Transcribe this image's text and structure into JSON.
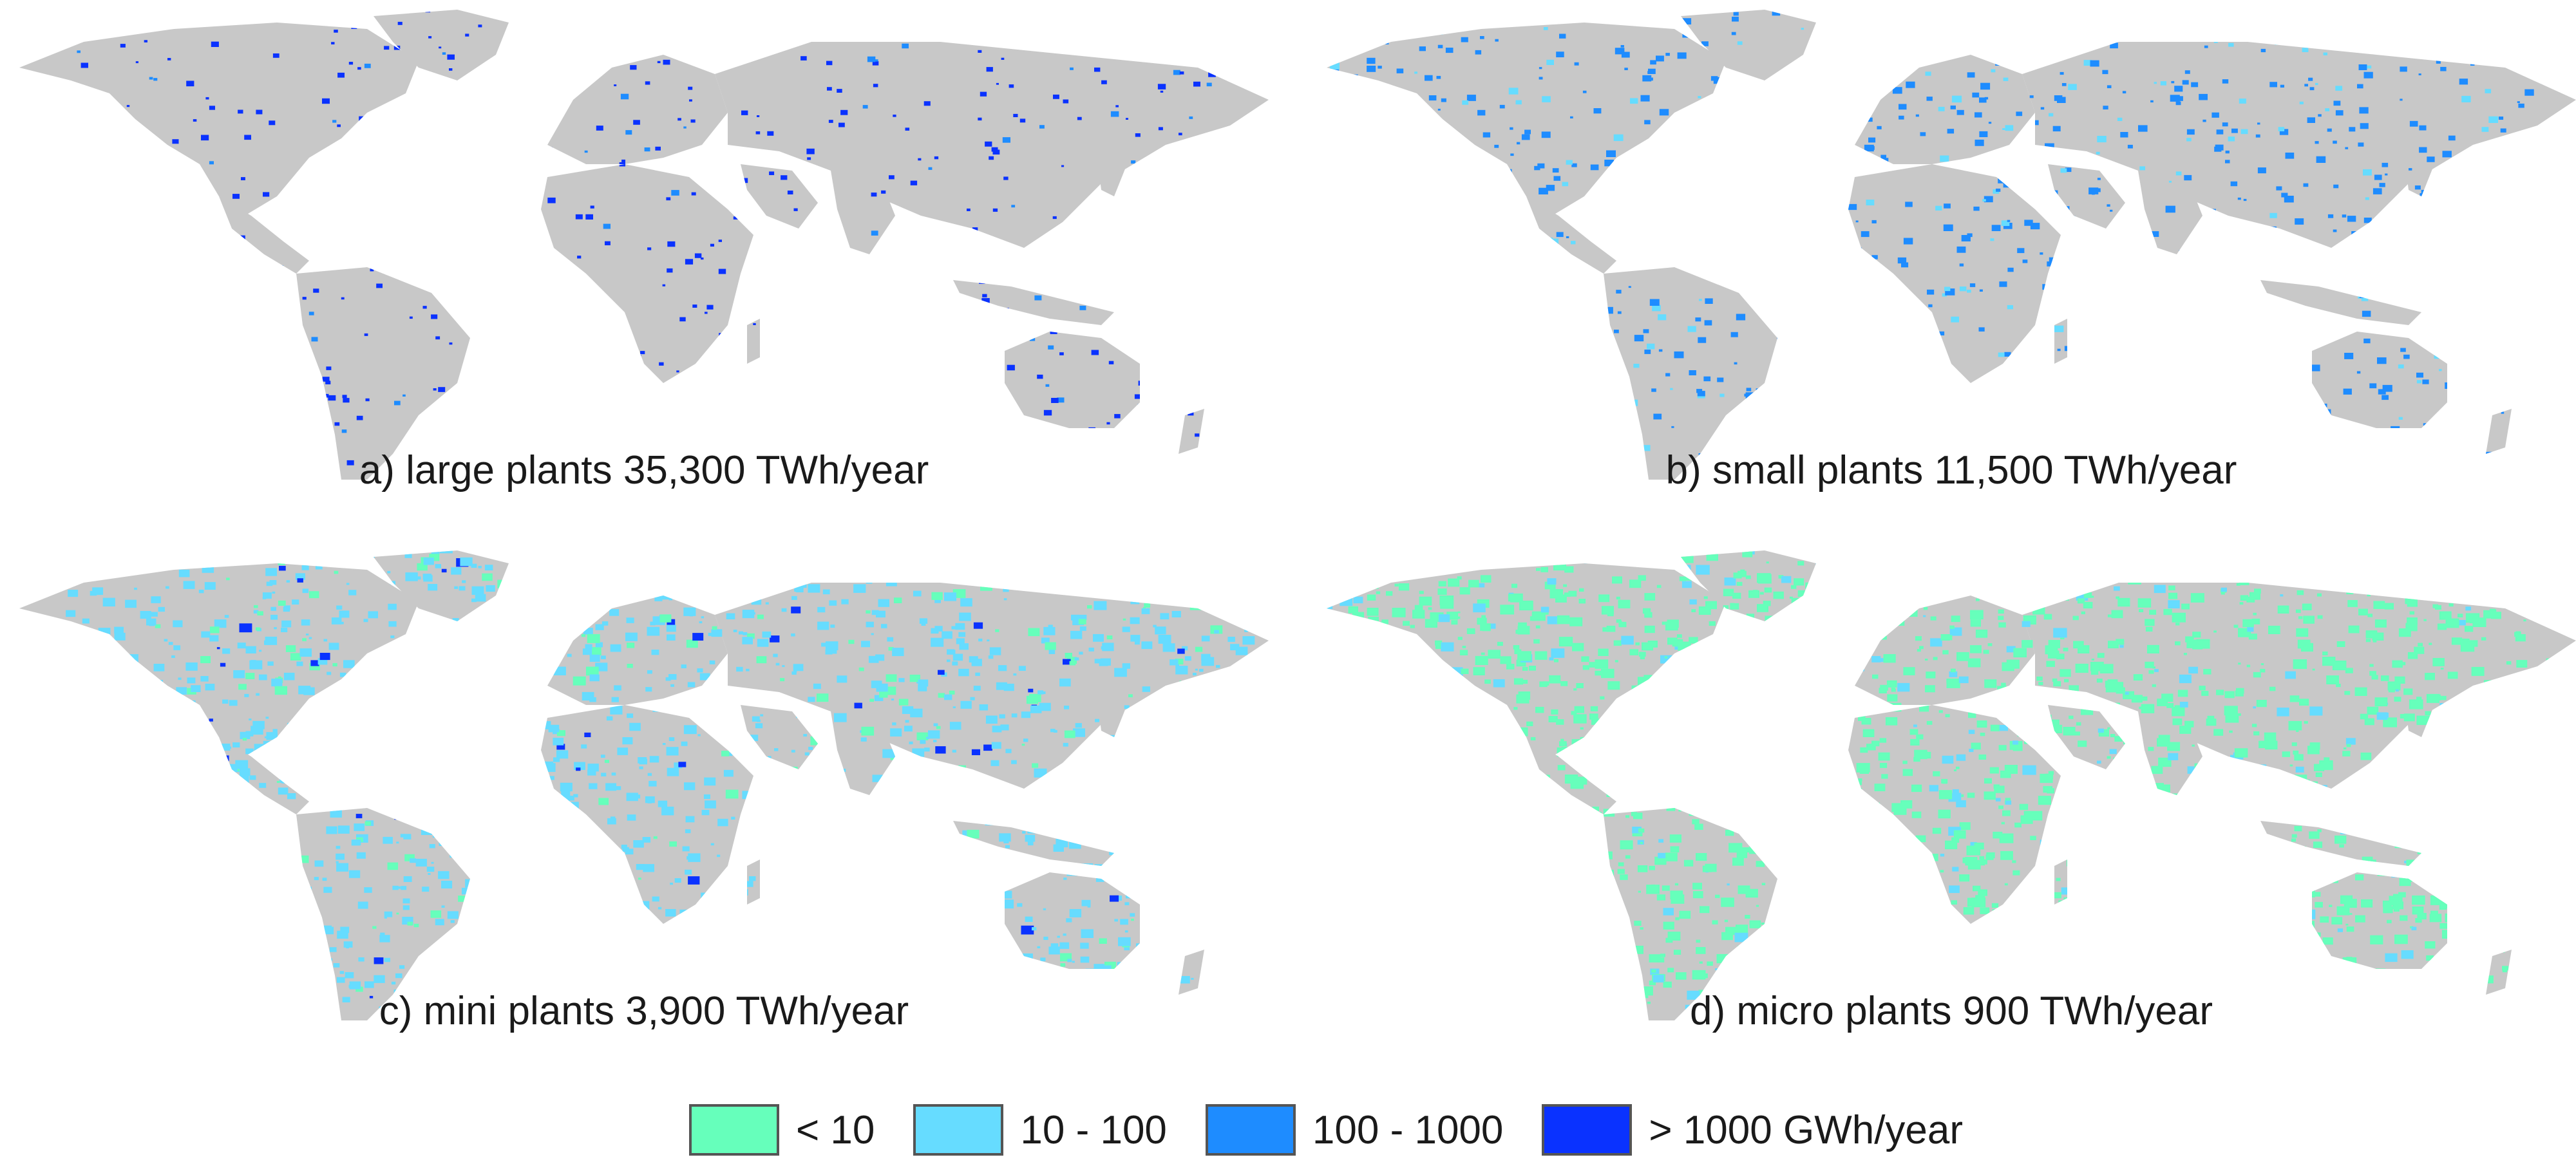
{
  "panels": [
    {
      "id": "a",
      "caption": "a) large plants 35,300 TWh/year",
      "fill_class": 3,
      "coverage": 0.18
    },
    {
      "id": "b",
      "caption": "b) small plants 11,500 TWh/year",
      "fill_class": 2,
      "coverage": 0.38
    },
    {
      "id": "c",
      "caption": "c) mini plants 3,900 TWh/year",
      "fill_class": 1,
      "coverage": 0.72
    },
    {
      "id": "d",
      "caption": "d) micro plants 900 TWh/year",
      "fill_class": 0,
      "coverage": 0.85
    }
  ],
  "legend": [
    {
      "label": "< 10",
      "color": "#66ffbb"
    },
    {
      "label": "10 - 100",
      "color": "#66dcff"
    },
    {
      "label": "100 - 1000",
      "color": "#1e8cff"
    },
    {
      "label": "> 1000 GWh/year",
      "color": "#0a32ff"
    }
  ],
  "land_color": "#c8c8c8"
}
